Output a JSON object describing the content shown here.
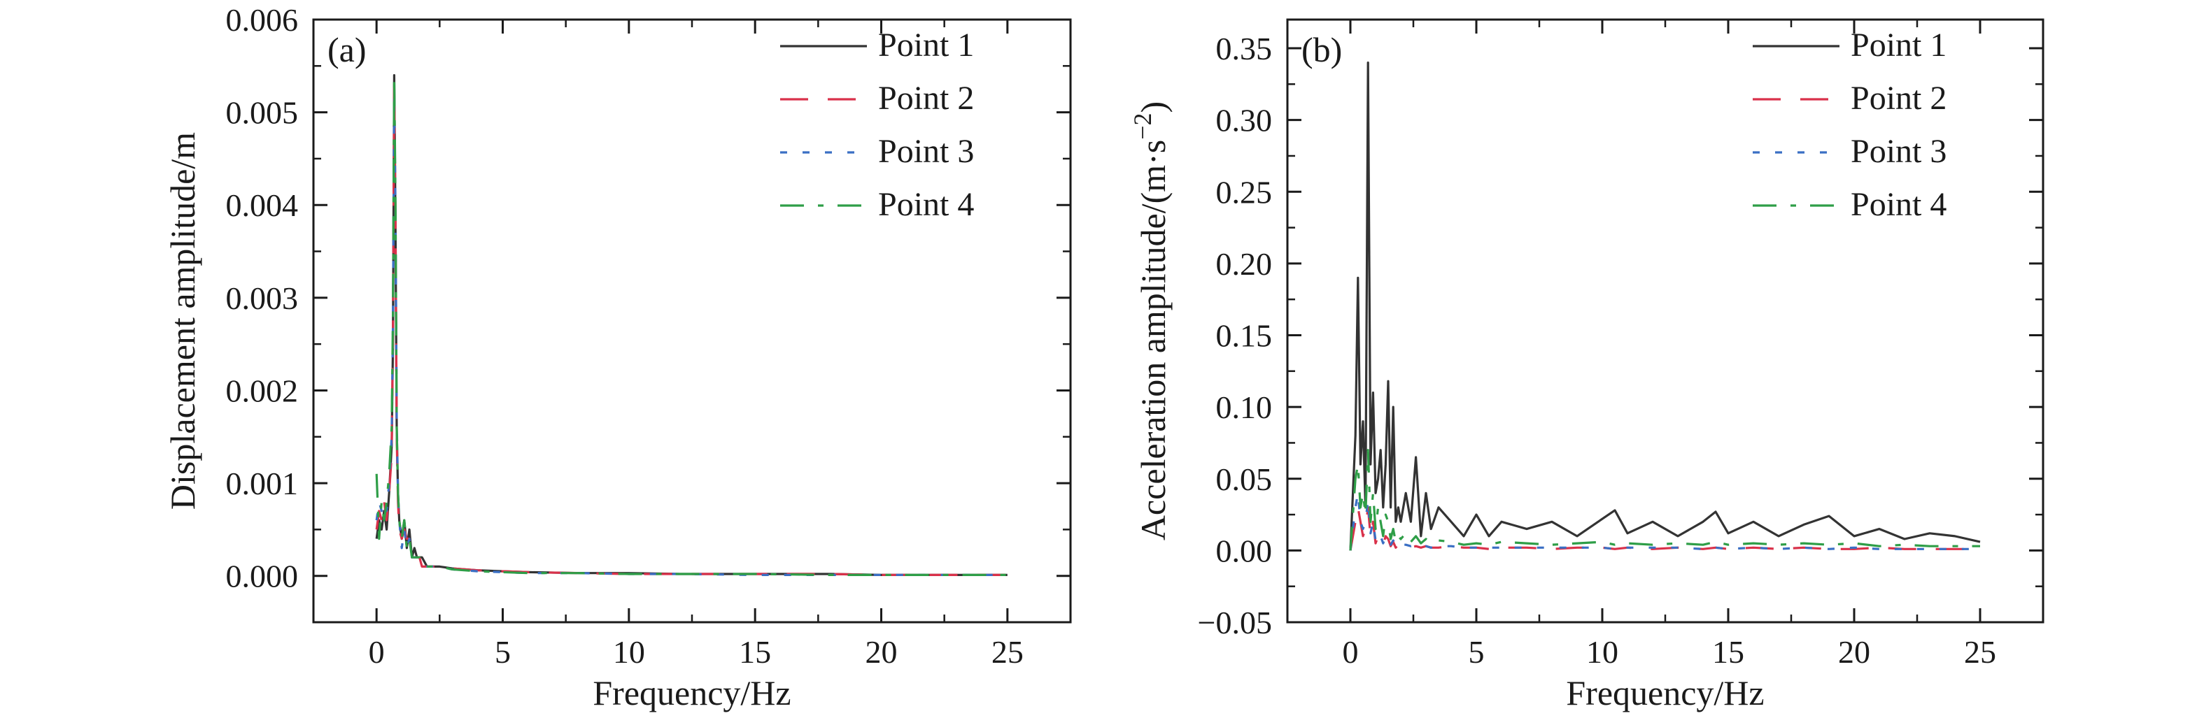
{
  "chart_data": [
    {
      "panel": "(a)",
      "type": "line",
      "xlabel": "Frequency/Hz",
      "ylabel": "Displacement amplitude/m",
      "xlim": [
        -2.5,
        27.5
      ],
      "ylim": [
        -0.0005,
        0.006
      ],
      "xticks": [
        0,
        5,
        10,
        15,
        20,
        25
      ],
      "yticks": [
        0,
        0.001,
        0.002,
        0.003,
        0.004,
        0.005,
        0.006
      ],
      "ytick_labels": [
        "0.000",
        "0.001",
        "0.002",
        "0.003",
        "0.004",
        "0.005",
        "0.006"
      ],
      "legend": "top-right",
      "grid": false,
      "x": [
        0,
        0.1,
        0.2,
        0.3,
        0.4,
        0.5,
        0.6,
        0.65,
        0.7,
        0.75,
        0.8,
        0.85,
        0.9,
        1.0,
        1.1,
        1.2,
        1.3,
        1.4,
        1.5,
        1.6,
        1.7,
        1.8,
        2.0,
        2.2,
        2.5,
        3,
        4,
        5,
        6,
        8,
        10,
        12,
        15,
        18,
        20,
        22,
        25
      ],
      "series": [
        {
          "name": "Point 1",
          "color": "#333333",
          "dash": "solid",
          "values": [
            0.0004,
            0.0006,
            0.0005,
            0.0007,
            0.0005,
            0.0009,
            0.0014,
            0.0025,
            0.0054,
            0.0038,
            0.0016,
            0.0009,
            0.0006,
            0.0004,
            0.0006,
            0.0003,
            0.0005,
            0.0002,
            0.0003,
            0.0002,
            0.0002,
            0.0002,
            0.0001,
            0.0001,
            0.0001,
            8e-05,
            6e-05,
            5e-05,
            4e-05,
            3e-05,
            3e-05,
            2e-05,
            2e-05,
            2e-05,
            1e-05,
            1e-05,
            1e-05
          ]
        },
        {
          "name": "Point 2",
          "color": "#d9314a",
          "dash": "40,28",
          "values": [
            0.0005,
            0.0007,
            0.0006,
            0.0008,
            0.0006,
            0.0009,
            0.0013,
            0.0026,
            0.0053,
            0.0039,
            0.0015,
            0.0008,
            0.0005,
            0.0004,
            0.0005,
            0.0004,
            0.0004,
            0.0002,
            0.0002,
            0.0002,
            0.0002,
            0.0001,
            0.0001,
            0.0001,
            0.0001,
            8e-05,
            6e-05,
            5e-05,
            4e-05,
            3e-05,
            2e-05,
            2e-05,
            2e-05,
            2e-05,
            1e-05,
            1e-05,
            1e-05
          ]
        },
        {
          "name": "Point 3",
          "color": "#3a6fc4",
          "dash": "10,22",
          "values": [
            0.0006,
            0.0008,
            0.0007,
            0.0008,
            0.0007,
            0.001,
            0.0015,
            0.0027,
            0.0052,
            0.004,
            0.0017,
            0.0009,
            0.0006,
            0.0003,
            0.0005,
            0.0003,
            0.0004,
            0.0002,
            0.0002,
            0.0002,
            0.0001,
            0.0001,
            0.0001,
            0.0001,
            0.0001,
            7e-05,
            5e-05,
            4e-05,
            3e-05,
            3e-05,
            2e-05,
            2e-05,
            1e-05,
            1e-05,
            1e-05,
            1e-05,
            1e-05
          ]
        },
        {
          "name": "Point 4",
          "color": "#2e9e47",
          "dash": "34,20,8,20",
          "values": [
            0.0011,
            0.0004,
            0.0008,
            0.0006,
            0.0008,
            0.0011,
            0.0016,
            0.0028,
            0.0054,
            0.0041,
            0.0016,
            0.0009,
            0.0006,
            0.0004,
            0.0006,
            0.0003,
            0.0004,
            0.0002,
            0.0002,
            0.0002,
            0.0002,
            0.0001,
            0.0001,
            0.0001,
            0.0001,
            7e-05,
            5e-05,
            4e-05,
            3e-05,
            3e-05,
            2e-05,
            2e-05,
            2e-05,
            1e-05,
            1e-05,
            1e-05,
            1e-05
          ]
        }
      ]
    },
    {
      "panel": "(b)",
      "type": "line",
      "xlabel": "Frequency/Hz",
      "ylabel": "Acceleration amplitude/(m·s",
      "ylabel_sup": "−2",
      "ylabel_end": ")",
      "xlim": [
        -2.5,
        27.5
      ],
      "ylim": [
        -0.05,
        0.37
      ],
      "xticks": [
        0,
        5,
        10,
        15,
        20,
        25
      ],
      "yticks": [
        -0.05,
        0,
        0.05,
        0.1,
        0.15,
        0.2,
        0.25,
        0.3,
        0.35
      ],
      "ytick_labels": [
        "−0.05",
        "0.00",
        "0.05",
        "0.10",
        "0.15",
        "0.20",
        "0.25",
        "0.30",
        "0.35"
      ],
      "legend": "top-right",
      "grid": false,
      "x": [
        0,
        0.2,
        0.3,
        0.4,
        0.5,
        0.6,
        0.7,
        0.8,
        0.9,
        1.0,
        1.1,
        1.2,
        1.3,
        1.4,
        1.5,
        1.6,
        1.7,
        1.8,
        1.9,
        2.0,
        2.2,
        2.4,
        2.6,
        2.8,
        3.0,
        3.2,
        3.5,
        4,
        4.5,
        5,
        5.5,
        6,
        7,
        8,
        9,
        10,
        10.5,
        11,
        12,
        13,
        14,
        14.5,
        15,
        16,
        17,
        18,
        19,
        20,
        21,
        22,
        23,
        24,
        25
      ],
      "series": [
        {
          "name": "Point 1",
          "color": "#333333",
          "dash": "solid",
          "values": [
            0.0,
            0.08,
            0.19,
            0.06,
            0.09,
            0.03,
            0.34,
            0.06,
            0.11,
            0.04,
            0.05,
            0.07,
            0.03,
            0.06,
            0.118,
            0.03,
            0.1,
            0.02,
            0.03,
            0.02,
            0.04,
            0.02,
            0.065,
            0.01,
            0.04,
            0.015,
            0.03,
            0.02,
            0.01,
            0.025,
            0.01,
            0.02,
            0.015,
            0.02,
            0.01,
            0.022,
            0.028,
            0.012,
            0.02,
            0.01,
            0.02,
            0.027,
            0.012,
            0.02,
            0.01,
            0.018,
            0.024,
            0.01,
            0.015,
            0.008,
            0.012,
            0.01,
            0.006
          ]
        },
        {
          "name": "Point 2",
          "color": "#d9314a",
          "dash": "40,28",
          "values": [
            0.0,
            0.02,
            0.03,
            0.02,
            0.01,
            0.015,
            0.03,
            0.01,
            0.02,
            0.005,
            0.01,
            0.008,
            0.004,
            0.01,
            0.008,
            0.003,
            0.006,
            0.002,
            0.004,
            0.003,
            0.004,
            0.002,
            0.003,
            0.002,
            0.003,
            0.002,
            0.002,
            0.003,
            0.002,
            0.002,
            0.001,
            0.002,
            0.002,
            0.001,
            0.002,
            0.002,
            0.001,
            0.002,
            0.001,
            0.002,
            0.001,
            0.002,
            0.001,
            0.002,
            0.001,
            0.002,
            0.001,
            0.001,
            0.002,
            0.001,
            0.001,
            0.001,
            0.001
          ]
        },
        {
          "name": "Point 3",
          "color": "#3a6fc4",
          "dash": "10,22",
          "values": [
            0.0,
            0.03,
            0.04,
            0.02,
            0.015,
            0.02,
            0.035,
            0.012,
            0.02,
            0.007,
            0.012,
            0.01,
            0.005,
            0.01,
            0.009,
            0.004,
            0.007,
            0.003,
            0.005,
            0.004,
            0.004,
            0.003,
            0.004,
            0.002,
            0.003,
            0.002,
            0.003,
            0.003,
            0.002,
            0.002,
            0.002,
            0.002,
            0.002,
            0.002,
            0.002,
            0.002,
            0.001,
            0.002,
            0.002,
            0.002,
            0.001,
            0.002,
            0.001,
            0.002,
            0.001,
            0.002,
            0.001,
            0.002,
            0.001,
            0.001,
            0.001,
            0.001,
            0.001
          ]
        },
        {
          "name": "Point 4",
          "color": "#2e9e47",
          "dash": "34,20,8,20",
          "values": [
            0.0,
            0.05,
            0.06,
            0.03,
            0.04,
            0.025,
            0.07,
            0.02,
            0.04,
            0.015,
            0.03,
            0.02,
            0.01,
            0.025,
            0.02,
            0.008,
            0.015,
            0.006,
            0.01,
            0.008,
            0.012,
            0.006,
            0.01,
            0.005,
            0.008,
            0.005,
            0.007,
            0.006,
            0.004,
            0.005,
            0.004,
            0.006,
            0.005,
            0.004,
            0.005,
            0.006,
            0.004,
            0.005,
            0.004,
            0.005,
            0.004,
            0.006,
            0.004,
            0.005,
            0.004,
            0.005,
            0.004,
            0.005,
            0.003,
            0.004,
            0.003,
            0.003,
            0.003
          ]
        }
      ]
    }
  ]
}
